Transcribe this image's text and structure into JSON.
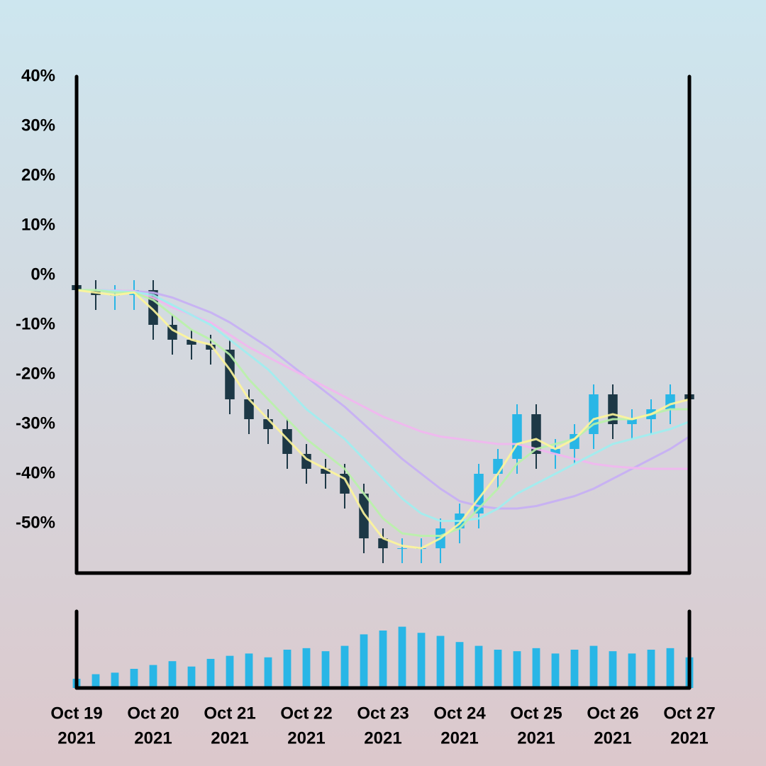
{
  "chart_data": {
    "type": "candlestick",
    "x": [
      0,
      0.25,
      0.5,
      0.75,
      1,
      1.25,
      1.5,
      1.75,
      2,
      2.25,
      2.5,
      2.75,
      3,
      3.25,
      3.5,
      3.75,
      4,
      4.25,
      4.5,
      4.75,
      5,
      5.25,
      5.5,
      5.75,
      6,
      6.25,
      6.5,
      6.75,
      7,
      7.25,
      7.5,
      7.75,
      8
    ],
    "xlim": [
      0,
      8
    ],
    "xticks": [
      {
        "value": 0,
        "label": [
          "Oct 19",
          "2021"
        ]
      },
      {
        "value": 1,
        "label": [
          "Oct 20",
          "2021"
        ]
      },
      {
        "value": 2,
        "label": [
          "Oct 21",
          "2021"
        ]
      },
      {
        "value": 3,
        "label": [
          "Oct 22",
          "2021"
        ]
      },
      {
        "value": 4,
        "label": [
          "Oct 23",
          "2021"
        ]
      },
      {
        "value": 5,
        "label": [
          "Oct 24",
          "2021"
        ]
      },
      {
        "value": 6,
        "label": [
          "Oct 25",
          "2021"
        ]
      },
      {
        "value": 7,
        "label": [
          "Oct 26",
          "2021"
        ]
      },
      {
        "value": 8,
        "label": [
          "Oct 27",
          "2021"
        ]
      }
    ],
    "ylim": [
      -60,
      40
    ],
    "yticks": [
      {
        "value": 40,
        "label": "40%"
      },
      {
        "value": 30,
        "label": "30%"
      },
      {
        "value": 20,
        "label": "20%"
      },
      {
        "value": 10,
        "label": "10%"
      },
      {
        "value": 0,
        "label": "0%"
      },
      {
        "value": -10,
        "label": "-10%"
      },
      {
        "value": -20,
        "label": "-20%"
      },
      {
        "value": -30,
        "label": "-30%"
      },
      {
        "value": -40,
        "label": "-40%"
      },
      {
        "value": -50,
        "label": "-50%"
      }
    ],
    "up_color": "#29b6e6",
    "down_color": "#1d3846",
    "open": [
      -2,
      -3,
      -4,
      -4,
      -3,
      -10,
      -13,
      -14,
      -15,
      -25,
      -29,
      -31,
      -36,
      -39,
      -40,
      -44,
      -53,
      -55,
      -55,
      -55,
      -51,
      -48,
      -40,
      -37,
      -28,
      -36,
      -35,
      -32,
      -24,
      -30,
      -29,
      -27,
      -24
    ],
    "high": [
      0,
      -1,
      -2,
      -1,
      -1,
      -8,
      -11,
      -12,
      -13,
      -23,
      -27,
      -29,
      -34,
      -37,
      -38,
      -42,
      -51,
      -53,
      -53,
      -49,
      -46,
      -38,
      -35,
      -26,
      -26,
      -33,
      -30,
      -22,
      -22,
      -27,
      -25,
      -22,
      -22
    ],
    "low": [
      -6,
      -7,
      -7,
      -7,
      -13,
      -16,
      -17,
      -18,
      -28,
      -32,
      -34,
      -39,
      -42,
      -43,
      -47,
      -56,
      -58,
      -58,
      -58,
      -58,
      -54,
      -51,
      -43,
      -40,
      -39,
      -39,
      -38,
      -35,
      -33,
      -33,
      -32,
      -30,
      -28
    ],
    "close": [
      -3,
      -4,
      -4,
      -3,
      -10,
      -13,
      -14,
      -15,
      -25,
      -29,
      -31,
      -36,
      -39,
      -40,
      -44,
      -53,
      -55,
      -55,
      -55,
      -51,
      -48,
      -40,
      -37,
      -28,
      -36,
      -35,
      -32,
      -24,
      -30,
      -29,
      -27,
      -24,
      -25
    ],
    "moving_averages": [
      {
        "color": "#c7aef5",
        "values": [
          -3,
          -3,
          -3.1,
          -3.2,
          -3.5,
          -4.5,
          -6,
          -7.5,
          -9.5,
          -12,
          -14.5,
          -17.5,
          -20.5,
          -23.5,
          -26.5,
          -30,
          -33.5,
          -37,
          -40,
          -43,
          -45.5,
          -46.5,
          -47,
          -47,
          -46.5,
          -45.5,
          -44.5,
          -43,
          -41,
          -39,
          -37,
          -35,
          -32.5
        ]
      },
      {
        "color": "#f2b6f0",
        "values": [
          -3,
          -3,
          -3.1,
          -3.2,
          -4.5,
          -6.5,
          -8,
          -9.5,
          -12,
          -14.5,
          -16.5,
          -18.5,
          -20.5,
          -22.5,
          -24.5,
          -26.5,
          -28.5,
          -30,
          -31.5,
          -32.5,
          -33,
          -33.5,
          -34,
          -34,
          -35,
          -36,
          -37,
          -38,
          -38.5,
          -38.8,
          -39,
          -39,
          -39
        ]
      },
      {
        "color": "#9eeef0",
        "values": [
          -3,
          -3,
          -3.2,
          -3.4,
          -4,
          -6,
          -8,
          -10,
          -13,
          -16,
          -19,
          -23,
          -27,
          -30,
          -33,
          -37,
          -41,
          -45,
          -48,
          -49.5,
          -49.5,
          -49,
          -47,
          -44,
          -42,
          -40,
          -38,
          -36,
          -34,
          -33,
          -32,
          -31,
          -29.5
        ]
      },
      {
        "color": "#b9f2a8",
        "values": [
          -3,
          -3,
          -3.5,
          -3.5,
          -5,
          -8,
          -11,
          -13,
          -16,
          -21,
          -25,
          -29,
          -33,
          -36,
          -39,
          -44,
          -49,
          -52,
          -52.5,
          -52.5,
          -51,
          -47,
          -43,
          -38,
          -35,
          -34,
          -33,
          -30,
          -29,
          -29,
          -28,
          -27,
          -27
        ]
      },
      {
        "color": "#fdf59a",
        "values": [
          -3,
          -3.5,
          -4,
          -3.5,
          -7,
          -11,
          -13,
          -14,
          -19,
          -25,
          -29,
          -33,
          -37,
          -39,
          -41,
          -48,
          -53,
          -54.5,
          -55,
          -53,
          -50,
          -45,
          -40,
          -34,
          -33,
          -35,
          -33,
          -29,
          -28,
          -29,
          -28,
          -26,
          -25
        ]
      }
    ],
    "volume": [
      12,
      18,
      20,
      25,
      30,
      35,
      28,
      38,
      42,
      45,
      40,
      50,
      52,
      48,
      55,
      70,
      75,
      80,
      72,
      68,
      60,
      55,
      50,
      48,
      52,
      45,
      50,
      55,
      48,
      45,
      50,
      52,
      40
    ],
    "volume_color": "#29b6e6",
    "vlim": [
      0,
      100
    ]
  }
}
